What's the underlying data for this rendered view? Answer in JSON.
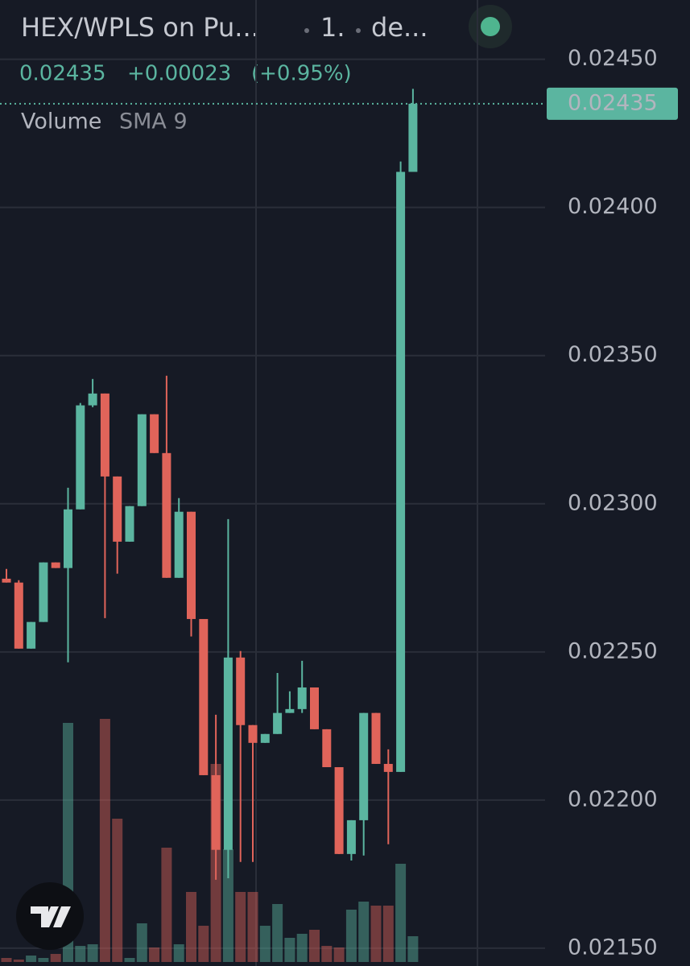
{
  "header": {
    "symbol": "HEX/WPLS on Pu...",
    "interval": "1.",
    "exchange": "de...",
    "change": "+0.00023",
    "change_percent": "(+0.95%)",
    "volume_label": "Volume",
    "sma_label": "SMA 9"
  },
  "chart_data": {
    "type": "candlestick",
    "up_color": "#5bb5a0",
    "down_color": "#e0645a",
    "ylim": [
      0.02144,
      0.0247
    ],
    "yticks": [
      {
        "value": 0.0245,
        "label": "0.02450"
      },
      {
        "value": 0.024,
        "label": "0.02400"
      },
      {
        "value": 0.0235,
        "label": "0.02350"
      },
      {
        "value": 0.023,
        "label": "0.02300"
      },
      {
        "value": 0.0225,
        "label": "0.02250"
      },
      {
        "value": 0.022,
        "label": "0.02200"
      },
      {
        "value": 0.0215,
        "label": "0.02150"
      }
    ],
    "grid": true,
    "last_price": 0.02435,
    "open": [
      0.022747,
      0.022734,
      0.022511,
      0.022601,
      0.022802,
      0.022783,
      0.022981,
      0.023332,
      0.023372,
      0.023092,
      0.022872,
      0.022992,
      0.023302,
      0.023171,
      0.02275,
      0.022973,
      0.022611,
      0.022084,
      0.021832,
      0.022481,
      0.022253,
      0.022193,
      0.022223,
      0.022294,
      0.022307,
      0.02238,
      0.022239,
      0.022111,
      0.021818,
      0.021932,
      0.022294,
      0.022122,
      0.022095,
      0.02412
    ],
    "high": [
      0.02278,
      0.022742,
      0.022601,
      0.022802,
      0.022802,
      0.023054,
      0.02334,
      0.023421,
      0.023372,
      0.023092,
      0.022992,
      0.023302,
      0.023302,
      0.023432,
      0.023019,
      0.022973,
      0.022611,
      0.022288,
      0.022948,
      0.022503,
      0.022253,
      0.022223,
      0.022429,
      0.022367,
      0.02247,
      0.02238,
      0.022239,
      0.022111,
      0.021932,
      0.022294,
      0.022294,
      0.022171,
      0.024155,
      0.0244
    ],
    "low": [
      0.022734,
      0.022511,
      0.022511,
      0.022601,
      0.022783,
      0.022465,
      0.022981,
      0.023326,
      0.022614,
      0.022764,
      0.022872,
      0.022992,
      0.023171,
      0.02275,
      0.02275,
      0.022552,
      0.022084,
      0.021731,
      0.021736,
      0.021791,
      0.021791,
      0.022193,
      0.022223,
      0.022294,
      0.022294,
      0.022239,
      0.022111,
      0.021818,
      0.021796,
      0.021813,
      0.022122,
      0.021851,
      0.022095,
      0.02412
    ],
    "close": [
      0.022734,
      0.022511,
      0.022601,
      0.022802,
      0.022783,
      0.022981,
      0.023332,
      0.023372,
      0.023092,
      0.022872,
      0.022992,
      0.023302,
      0.023171,
      0.02275,
      0.022973,
      0.022611,
      0.022084,
      0.021832,
      0.022481,
      0.022253,
      0.022193,
      0.022223,
      0.022294,
      0.022307,
      0.02238,
      0.022239,
      0.022111,
      0.021818,
      0.021932,
      0.022294,
      0.022122,
      0.022095,
      0.02412,
      0.02435
    ],
    "volume": [
      5,
      3,
      8,
      5,
      10,
      297,
      20,
      22,
      302,
      178,
      5,
      48,
      18,
      142,
      22,
      87,
      45,
      246,
      140,
      87,
      87,
      45,
      72,
      30,
      35,
      40,
      20,
      18,
      65,
      75,
      70,
      70,
      122,
      32
    ]
  }
}
